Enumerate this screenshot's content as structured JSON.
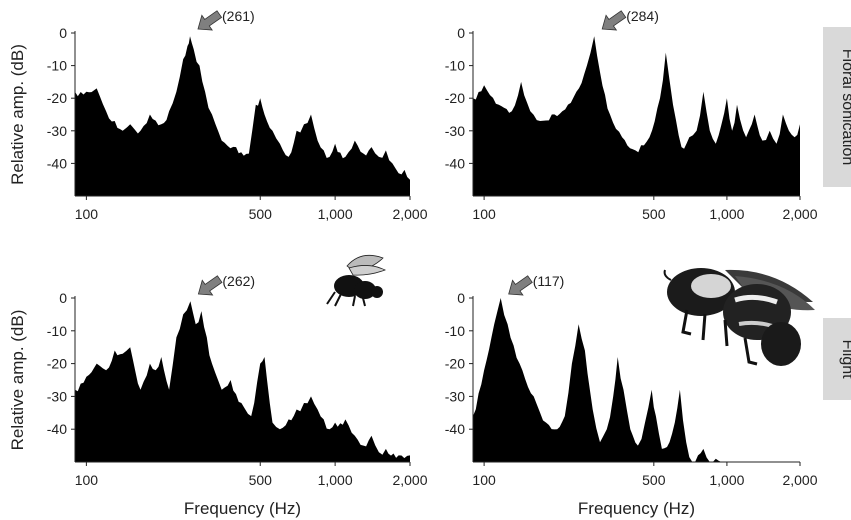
{
  "row_labels": [
    "Floral sonication",
    "Flight"
  ],
  "panel_peak_labels": [
    "(261)",
    "(284)",
    "(262)",
    "(117)"
  ],
  "colors": {
    "fill": "#000000",
    "arrow": "#7f7f7f",
    "row_label_bg": "#d9d9d9"
  },
  "icons": {
    "small_bee": "bee-silhouette-icon",
    "large_bee": "bumblebee-illustration-icon"
  },
  "chart_data": [
    {
      "type": "area",
      "row": "Floral sonication",
      "xscale": "log",
      "xlim": [
        90,
        2000
      ],
      "xticks": [
        100,
        500,
        1000,
        2000
      ],
      "xtick_labels": [
        "100",
        "500",
        "1,000",
        "2,000"
      ],
      "ylim": [
        -50,
        0
      ],
      "yticks": [
        0,
        -10,
        -20,
        -30,
        -40
      ],
      "ytick_labels": [
        "0",
        "-10",
        "-20",
        "-30",
        "-40"
      ],
      "ylabel": "Relative amp. (dB)",
      "xlabel": "",
      "peak": {
        "x": 261,
        "label": "(261)"
      },
      "x": [
        90,
        100,
        110,
        120,
        130,
        140,
        150,
        165,
        180,
        200,
        215,
        230,
        245,
        255,
        261,
        270,
        285,
        300,
        320,
        350,
        400,
        450,
        480,
        500,
        520,
        560,
        600,
        650,
        700,
        750,
        800,
        850,
        900,
        950,
        1000,
        1100,
        1200,
        1300,
        1400,
        1500,
        1600,
        1700,
        1800,
        1900,
        2000
      ],
      "y": [
        -18,
        -18,
        -17,
        -24,
        -27,
        -30,
        -28,
        -30,
        -25,
        -28,
        -24,
        -18,
        -8,
        -4,
        -1,
        -5,
        -10,
        -18,
        -25,
        -33,
        -35,
        -37,
        -22,
        -20,
        -25,
        -30,
        -34,
        -38,
        -30,
        -28,
        -25,
        -33,
        -36,
        -38,
        -34,
        -38,
        -33,
        -37,
        -35,
        -38,
        -36,
        -40,
        -43,
        -42,
        -45
      ]
    },
    {
      "type": "area",
      "row": "Floral sonication",
      "xscale": "log",
      "xlim": [
        90,
        2000
      ],
      "xticks": [
        100,
        500,
        1000,
        2000
      ],
      "xtick_labels": [
        "100",
        "500",
        "1,000",
        "2,000"
      ],
      "ylim": [
        -50,
        0
      ],
      "yticks": [
        0,
        -10,
        -20,
        -30,
        -40
      ],
      "ytick_labels": [
        "0",
        "-10",
        "-20",
        "-30",
        "-40"
      ],
      "ylabel": "",
      "xlabel": "",
      "peak": {
        "x": 284,
        "label": "(284)"
      },
      "x": [
        90,
        100,
        115,
        130,
        142,
        155,
        170,
        190,
        210,
        240,
        265,
        284,
        300,
        330,
        370,
        420,
        480,
        530,
        560,
        600,
        650,
        700,
        750,
        800,
        850,
        900,
        950,
        1000,
        1050,
        1100,
        1200,
        1300,
        1400,
        1500,
        1600,
        1700,
        1800,
        1900,
        2000
      ],
      "y": [
        -20,
        -16,
        -22,
        -24,
        -15,
        -24,
        -27,
        -25,
        -24,
        -18,
        -10,
        -1,
        -12,
        -25,
        -32,
        -36,
        -32,
        -20,
        -6,
        -22,
        -35,
        -32,
        -30,
        -18,
        -30,
        -34,
        -28,
        -20,
        -30,
        -22,
        -32,
        -25,
        -33,
        -30,
        -34,
        -25,
        -30,
        -32,
        -28
      ]
    },
    {
      "type": "area",
      "row": "Flight",
      "xscale": "log",
      "xlim": [
        90,
        2000
      ],
      "xticks": [
        100,
        500,
        1000,
        2000
      ],
      "xtick_labels": [
        "100",
        "500",
        "1,000",
        "2,000"
      ],
      "ylim": [
        -50,
        0
      ],
      "yticks": [
        0,
        -10,
        -20,
        -30,
        -40
      ],
      "ytick_labels": [
        "0",
        "-10",
        "-20",
        "-30",
        "-40"
      ],
      "ylabel": "Relative amp. (dB)",
      "xlabel": "Frequency (Hz)",
      "peak": {
        "x": 262,
        "label": "(262)"
      },
      "x": [
        90,
        100,
        110,
        120,
        130,
        140,
        150,
        165,
        180,
        190,
        200,
        215,
        230,
        245,
        262,
        275,
        290,
        305,
        320,
        350,
        380,
        420,
        460,
        500,
        520,
        560,
        600,
        650,
        700,
        750,
        800,
        850,
        900,
        950,
        1000,
        1100,
        1200,
        1300,
        1400,
        1500,
        1600,
        1800,
        2000
      ],
      "y": [
        -28,
        -24,
        -20,
        -22,
        -16,
        -17,
        -15,
        -28,
        -20,
        -22,
        -18,
        -28,
        -12,
        -5,
        -1,
        -8,
        -4,
        -12,
        -20,
        -28,
        -25,
        -32,
        -36,
        -20,
        -18,
        -38,
        -40,
        -37,
        -34,
        -32,
        -30,
        -34,
        -37,
        -40,
        -38,
        -37,
        -42,
        -45,
        -42,
        -47,
        -46,
        -48,
        -48
      ]
    },
    {
      "type": "area",
      "row": "Flight",
      "xscale": "log",
      "xlim": [
        90,
        2000
      ],
      "xticks": [
        100,
        500,
        1000,
        2000
      ],
      "xtick_labels": [
        "100",
        "500",
        "1,000",
        "2,000"
      ],
      "ylim": [
        -50,
        0
      ],
      "yticks": [
        0,
        -10,
        -20,
        -30,
        -40
      ],
      "ytick_labels": [
        "0",
        "-10",
        "-20",
        "-30",
        "-40"
      ],
      "ylabel": "",
      "xlabel": "Frequency (Hz)",
      "peak": {
        "x": 117,
        "label": "(117)"
      },
      "x": [
        90,
        100,
        110,
        117,
        125,
        140,
        160,
        180,
        200,
        215,
        230,
        245,
        260,
        280,
        300,
        320,
        340,
        355,
        375,
        400,
        430,
        460,
        490,
        510,
        540,
        580,
        610,
        640,
        680,
        720,
        760,
        800,
        850,
        900,
        1000
      ],
      "y": [
        -36,
        -22,
        -8,
        0,
        -8,
        -20,
        -30,
        -38,
        -40,
        -36,
        -20,
        -8,
        -16,
        -34,
        -44,
        -40,
        -30,
        -18,
        -28,
        -40,
        -45,
        -38,
        -28,
        -36,
        -46,
        -44,
        -38,
        -28,
        -44,
        -50,
        -48,
        -46,
        -50,
        -49,
        -50
      ]
    }
  ]
}
